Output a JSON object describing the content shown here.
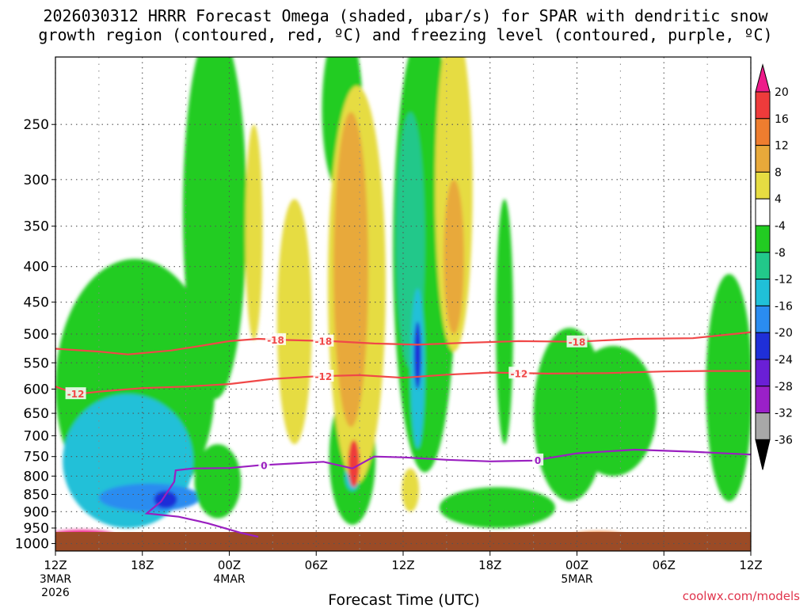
{
  "title_line1": "2026030312 HRRR Forecast Omega (shaded, μbar/s) for SPAR with dendritic snow",
  "title_line2": "growth region (contoured, red, ºC) and freezing level (contoured, purple, ºC)",
  "watermark": "coolwx.com/models",
  "chart_data": {
    "type": "heatmap",
    "title": "2026030312 HRRR Forecast Omega (shaded, μbar/s) for SPAR with dendritic snow growth region (contoured, red, ºC) and freezing level (contoured, purple, ºC)",
    "xlabel": "Forecast Time (UTC)",
    "ylabel": "",
    "x_range_hours": [
      0,
      48
    ],
    "y_range_hPa": [
      200,
      1025
    ],
    "y_ticks": [
      250,
      300,
      350,
      400,
      450,
      500,
      550,
      600,
      650,
      700,
      750,
      800,
      850,
      900,
      950,
      1000
    ],
    "x_ticks": [
      {
        "hour": 0,
        "label": "12Z",
        "sub1": "3MAR",
        "sub2": "2026"
      },
      {
        "hour": 6,
        "label": "18Z",
        "sub1": "",
        "sub2": ""
      },
      {
        "hour": 12,
        "label": "00Z",
        "sub1": "4MAR",
        "sub2": ""
      },
      {
        "hour": 18,
        "label": "06Z",
        "sub1": "",
        "sub2": ""
      },
      {
        "hour": 24,
        "label": "12Z",
        "sub1": "",
        "sub2": ""
      },
      {
        "hour": 30,
        "label": "18Z",
        "sub1": "",
        "sub2": ""
      },
      {
        "hour": 36,
        "label": "00Z",
        "sub1": "5MAR",
        "sub2": ""
      },
      {
        "hour": 42,
        "label": "06Z",
        "sub1": "",
        "sub2": ""
      },
      {
        "hour": 48,
        "label": "12Z",
        "sub1": "",
        "sub2": ""
      }
    ],
    "colorbar": {
      "labels": [
        "20",
        "16",
        "12",
        "8",
        "4",
        "-4",
        "-8",
        "-12",
        "-16",
        "-20",
        "-24",
        "-28",
        "-32",
        "-36"
      ],
      "bins": [
        {
          "range": ">20",
          "color": "#ee1b8a"
        },
        {
          "range": "16 to 20",
          "color": "#ee3b3b"
        },
        {
          "range": "12 to 16",
          "color": "#ee7d2f"
        },
        {
          "range": "8 to 12",
          "color": "#e8a93a"
        },
        {
          "range": "4 to 8",
          "color": "#e6dc42"
        },
        {
          "range": "-4 to 4",
          "color": "#ffffff"
        },
        {
          "range": "-8 to -4",
          "color": "#22cc22"
        },
        {
          "range": "-12 to -8",
          "color": "#22c88a"
        },
        {
          "range": "-16 to -12",
          "color": "#20c0d8"
        },
        {
          "range": "-20 to -16",
          "color": "#2a8cf0"
        },
        {
          "range": "-24 to -20",
          "color": "#1f2fd8"
        },
        {
          "range": "-28 to -24",
          "color": "#6a1fd6"
        },
        {
          "range": "-32 to -28",
          "color": "#9a20c8"
        },
        {
          "range": "-36 to -32",
          "color": "#a8a8a8"
        },
        {
          "range": "<-36",
          "color": "#000000"
        }
      ]
    },
    "omega_regions": [
      {
        "value": -6,
        "center_hour": 5.5,
        "center_hPa": 650,
        "half_width_hours": 5.5,
        "half_depth_hPa": 260
      },
      {
        "value": -14,
        "center_hour": 5,
        "center_hPa": 780,
        "half_width_hours": 4.5,
        "half_depth_hPa": 170
      },
      {
        "value": -18,
        "center_hour": 6.5,
        "center_hPa": 860,
        "half_width_hours": 3.5,
        "half_depth_hPa": 40
      },
      {
        "value": -22,
        "center_hour": 7.6,
        "center_hPa": 865,
        "half_width_hours": 0.8,
        "half_depth_hPa": 25
      },
      {
        "value": -6,
        "center_hour": 11,
        "center_hPa": 400,
        "half_width_hours": 2.2,
        "half_depth_hPa": 220
      },
      {
        "value": -6,
        "center_hour": 11.2,
        "center_hPa": 820,
        "half_width_hours": 1.6,
        "half_depth_hPa": 100
      },
      {
        "value": -6,
        "center_hour": 25.5,
        "center_hPa": 450,
        "half_width_hours": 2.2,
        "half_depth_hPa": 340
      },
      {
        "value": -10,
        "center_hour": 24.5,
        "center_hPa": 400,
        "half_width_hours": 1.0,
        "half_depth_hPa": 160
      },
      {
        "value": -14,
        "center_hour": 25,
        "center_hPa": 580,
        "half_width_hours": 0.5,
        "half_depth_hPa": 150
      },
      {
        "value": -22,
        "center_hour": 25,
        "center_hPa": 540,
        "half_width_hours": 0.25,
        "half_depth_hPa": 60
      },
      {
        "value": -6,
        "center_hour": 20.5,
        "center_hPa": 770,
        "half_width_hours": 1.6,
        "half_depth_hPa": 170
      },
      {
        "value": -14,
        "center_hour": 20.5,
        "center_hPa": 800,
        "half_width_hours": 0.5,
        "half_depth_hPa": 40
      },
      {
        "value": -6,
        "center_hour": 31,
        "center_hPa": 520,
        "half_width_hours": 0.6,
        "half_depth_hPa": 200
      },
      {
        "value": -6,
        "center_hour": 35.5,
        "center_hPa": 680,
        "half_width_hours": 2.5,
        "half_depth_hPa": 190
      },
      {
        "value": -6,
        "center_hour": 38.5,
        "center_hPa": 660,
        "half_width_hours": 3.0,
        "half_depth_hPa": 140
      },
      {
        "value": -6,
        "center_hour": 46.5,
        "center_hPa": 640,
        "half_width_hours": 1.6,
        "half_depth_hPa": 230
      },
      {
        "value": -6,
        "center_hour": 30.5,
        "center_hPa": 890,
        "half_width_hours": 4.0,
        "half_depth_hPa": 60
      },
      {
        "value": -6,
        "center_hour": 19.8,
        "center_hPa": 245,
        "half_width_hours": 1.4,
        "half_depth_hPa": 70
      },
      {
        "value": 6,
        "center_hour": 16.5,
        "center_hPa": 520,
        "half_width_hours": 1.2,
        "half_depth_hPa": 200
      },
      {
        "value": 6,
        "center_hour": 20.8,
        "center_hPa": 520,
        "half_width_hours": 2.0,
        "half_depth_hPa": 300
      },
      {
        "value": 12,
        "center_hour": 20.4,
        "center_hPa": 460,
        "half_width_hours": 1.2,
        "half_depth_hPa": 220
      },
      {
        "value": 18,
        "center_hour": 20.6,
        "center_hPa": 770,
        "half_width_hours": 0.4,
        "half_depth_hPa": 60
      },
      {
        "value": 6,
        "center_hour": 27.5,
        "center_hPa": 330,
        "half_width_hours": 1.3,
        "half_depth_hPa": 200
      },
      {
        "value": 10,
        "center_hour": 27.5,
        "center_hPa": 400,
        "half_width_hours": 0.7,
        "half_depth_hPa": 100
      },
      {
        "value": 6,
        "center_hour": 13.7,
        "center_hPa": 380,
        "half_width_hours": 0.6,
        "half_depth_hPa": 130
      },
      {
        "value": 8,
        "center_hour": 24.5,
        "center_hPa": 840,
        "half_width_hours": 0.6,
        "half_depth_hPa": 60
      },
      {
        "value": 22,
        "center_hour": 1.8,
        "center_hPa": 972,
        "half_width_hours": 2.2,
        "half_depth_hPa": 16
      },
      {
        "value": 14,
        "center_hour": 37.5,
        "center_hPa": 975,
        "half_width_hours": 1.8,
        "half_depth_hPa": 14
      }
    ],
    "dendritic_contours": [
      {
        "label": "-18",
        "label_hour": 15.2,
        "points": [
          [
            0,
            525
          ],
          [
            3,
            530
          ],
          [
            5,
            535
          ],
          [
            8,
            528
          ],
          [
            10,
            520
          ],
          [
            12,
            512
          ],
          [
            14,
            508
          ],
          [
            16,
            510
          ],
          [
            19,
            512
          ],
          [
            22,
            516
          ],
          [
            25,
            518
          ],
          [
            28,
            515
          ],
          [
            32,
            512
          ],
          [
            36,
            513
          ],
          [
            40,
            508
          ],
          [
            44,
            507
          ],
          [
            48,
            497
          ]
        ]
      },
      {
        "label": "-12",
        "label_hour": 1.4,
        "points": [
          [
            0,
            595
          ],
          [
            1.5,
            610
          ],
          [
            3,
            605
          ],
          [
            6,
            598
          ],
          [
            9,
            595
          ],
          [
            12,
            590
          ],
          [
            15,
            580
          ],
          [
            18,
            575
          ],
          [
            21,
            573
          ],
          [
            24,
            578
          ],
          [
            27,
            572
          ],
          [
            30,
            568
          ],
          [
            34,
            570
          ],
          [
            38,
            569
          ],
          [
            42,
            566
          ],
          [
            45,
            565
          ],
          [
            48,
            565
          ]
        ]
      }
    ],
    "contour_label_hours": [
      15.2,
      18.5,
      36,
      1.4,
      18.5,
      32
    ],
    "freezing_contour": {
      "label": "0",
      "points": [
        [
          14,
          978
        ],
        [
          12.8,
          965
        ],
        [
          10.5,
          935
        ],
        [
          8.5,
          915
        ],
        [
          6.3,
          905
        ],
        [
          7.3,
          870
        ],
        [
          8.2,
          815
        ],
        [
          8.3,
          785
        ],
        [
          9.5,
          780
        ],
        [
          12,
          779
        ],
        [
          14,
          772
        ],
        [
          18.5,
          763
        ],
        [
          20.5,
          780
        ],
        [
          22,
          750
        ],
        [
          24,
          752
        ],
        [
          27,
          758
        ],
        [
          30,
          762
        ],
        [
          33,
          760
        ],
        [
          36,
          742
        ],
        [
          40,
          733
        ],
        [
          44,
          738
        ],
        [
          48,
          745
        ]
      ]
    }
  }
}
